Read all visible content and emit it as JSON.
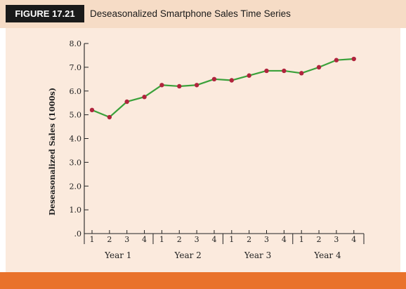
{
  "figure": {
    "label": "FIGURE 17.21",
    "title": "Deseasonalized Smartphone Sales Time Series"
  },
  "colors": {
    "header_bg": "#f6dcc6",
    "panel_bg": "#fbeadd",
    "bottom_bar": "#e9722b",
    "line": "#3aa13a",
    "marker": "#b0243d"
  },
  "chart_data": {
    "type": "line",
    "ylabel": "Deseasonalized Sales (1000s)",
    "xlabel": "",
    "ylim": [
      0,
      8.0
    ],
    "y_ticks": [
      {
        "value": 0,
        "label": ".0"
      },
      {
        "value": 1,
        "label": "1.0"
      },
      {
        "value": 2,
        "label": "2.0"
      },
      {
        "value": 3,
        "label": "3.0"
      },
      {
        "value": 4,
        "label": "4.0"
      },
      {
        "value": 5,
        "label": "5.0"
      },
      {
        "value": 6,
        "label": "6.0"
      },
      {
        "value": 7,
        "label": "7.0"
      },
      {
        "value": 8,
        "label": "8.0"
      }
    ],
    "quarter_labels": [
      "1",
      "2",
      "3",
      "4",
      "1",
      "2",
      "3",
      "4",
      "1",
      "2",
      "3",
      "4",
      "1",
      "2",
      "3",
      "4"
    ],
    "year_labels": [
      "Year 1",
      "Year 2",
      "Year 3",
      "Year 4"
    ],
    "x": [
      1,
      2,
      3,
      4,
      5,
      6,
      7,
      8,
      9,
      10,
      11,
      12,
      13,
      14,
      15,
      16
    ],
    "series": [
      {
        "values": [
          5.2,
          4.9,
          5.55,
          5.75,
          6.25,
          6.2,
          6.25,
          6.5,
          6.45,
          6.65,
          6.85,
          6.85,
          6.75,
          7.0,
          7.3,
          7.35
        ]
      }
    ],
    "grid": false,
    "legend": "none"
  }
}
